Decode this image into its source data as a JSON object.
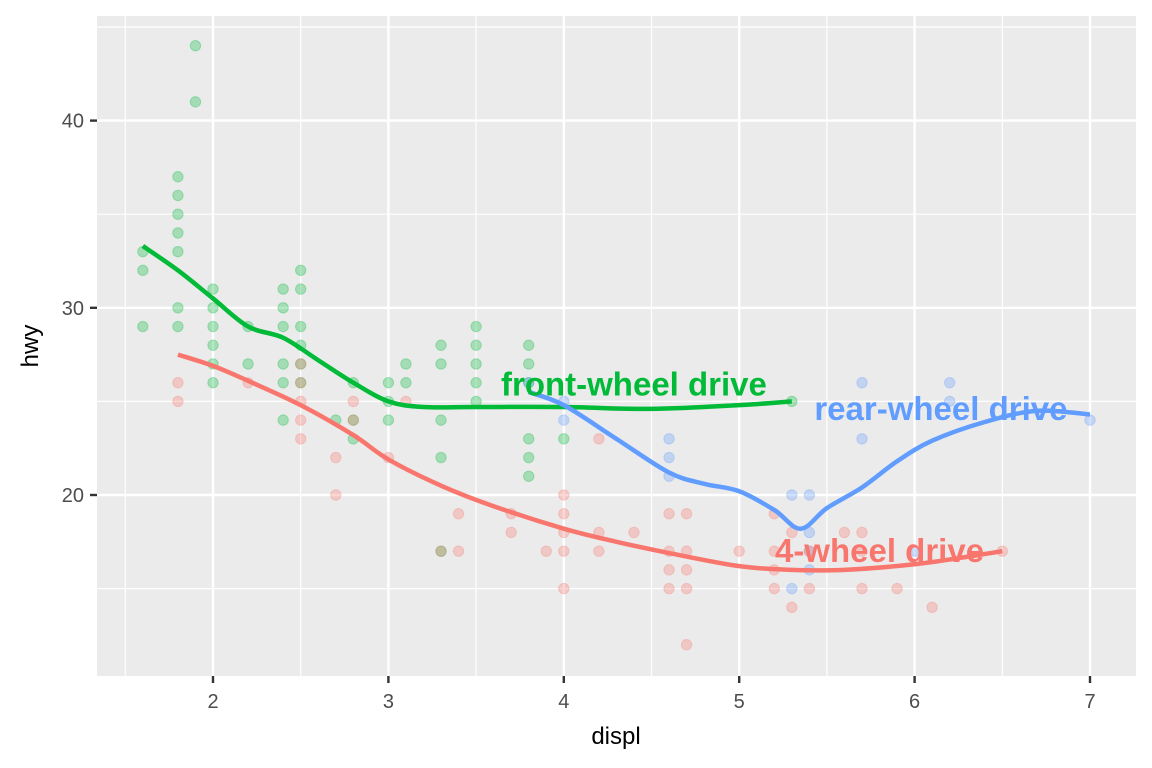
{
  "chart_data": {
    "type": "scatter",
    "title": "",
    "xlabel": "displ",
    "ylabel": "hwy",
    "xlim": [
      1.33,
      7.27
    ],
    "ylim": [
      10.4,
      45.6
    ],
    "x_ticks": [
      2,
      3,
      4,
      5,
      6,
      7
    ],
    "y_ticks": [
      20,
      30,
      40
    ],
    "grid": true,
    "legend": "none",
    "colors": {
      "4": "#F8766D",
      "f": "#00BA38",
      "r": "#619CFF"
    },
    "series": [
      {
        "name": "front-wheel drive",
        "key": "f",
        "label_pos": [
          4.4,
          25.9
        ],
        "points": [
          [
            1.6,
            33
          ],
          [
            1.6,
            32
          ],
          [
            1.6,
            29
          ],
          [
            1.8,
            37
          ],
          [
            1.8,
            36
          ],
          [
            1.8,
            35
          ],
          [
            1.8,
            34
          ],
          [
            1.8,
            33
          ],
          [
            1.8,
            30
          ],
          [
            1.8,
            29
          ],
          [
            1.9,
            44
          ],
          [
            1.9,
            41
          ],
          [
            2.0,
            31
          ],
          [
            2.0,
            30
          ],
          [
            2.0,
            29
          ],
          [
            2.0,
            28
          ],
          [
            2.0,
            27
          ],
          [
            2.0,
            26
          ],
          [
            2.2,
            29
          ],
          [
            2.2,
            27
          ],
          [
            2.4,
            31
          ],
          [
            2.4,
            30
          ],
          [
            2.4,
            29
          ],
          [
            2.4,
            27
          ],
          [
            2.4,
            26
          ],
          [
            2.4,
            24
          ],
          [
            2.5,
            32
          ],
          [
            2.5,
            31
          ],
          [
            2.5,
            29
          ],
          [
            2.5,
            28
          ],
          [
            2.5,
            27
          ],
          [
            2.5,
            26
          ],
          [
            2.7,
            24
          ],
          [
            2.8,
            26
          ],
          [
            2.8,
            24
          ],
          [
            2.8,
            23
          ],
          [
            3.0,
            26
          ],
          [
            3.0,
            25
          ],
          [
            3.0,
            24
          ],
          [
            3.1,
            27
          ],
          [
            3.1,
            26
          ],
          [
            3.3,
            28
          ],
          [
            3.3,
            27
          ],
          [
            3.3,
            24
          ],
          [
            3.3,
            22
          ],
          [
            3.3,
            17
          ],
          [
            3.5,
            29
          ],
          [
            3.5,
            28
          ],
          [
            3.5,
            27
          ],
          [
            3.5,
            26
          ],
          [
            3.5,
            25
          ],
          [
            3.8,
            28
          ],
          [
            3.8,
            27
          ],
          [
            3.8,
            26
          ],
          [
            3.8,
            23
          ],
          [
            3.8,
            22
          ],
          [
            3.8,
            21
          ],
          [
            4.0,
            23
          ],
          [
            5.3,
            25
          ]
        ],
        "smooth": [
          [
            1.6,
            33.3
          ],
          [
            1.8,
            32.0
          ],
          [
            2.0,
            30.5
          ],
          [
            2.2,
            29.0
          ],
          [
            2.4,
            28.4
          ],
          [
            2.6,
            27.2
          ],
          [
            2.8,
            26.0
          ],
          [
            3.0,
            25.0
          ],
          [
            3.2,
            24.7
          ],
          [
            3.5,
            24.7
          ],
          [
            4.0,
            24.7
          ],
          [
            4.5,
            24.6
          ],
          [
            5.0,
            24.8
          ],
          [
            5.3,
            25.0
          ]
        ]
      },
      {
        "name": "rear-wheel drive",
        "key": "r",
        "label_pos": [
          6.15,
          24.6
        ],
        "points": [
          [
            3.8,
            26
          ],
          [
            4.0,
            24
          ],
          [
            4.0,
            25
          ],
          [
            4.6,
            23
          ],
          [
            4.6,
            22
          ],
          [
            4.6,
            21
          ],
          [
            5.3,
            20
          ],
          [
            5.4,
            20
          ],
          [
            5.3,
            15
          ],
          [
            5.4,
            18
          ],
          [
            5.4,
            17
          ],
          [
            5.4,
            16
          ],
          [
            5.7,
            26
          ],
          [
            5.7,
            23
          ],
          [
            6.0,
            17
          ],
          [
            6.2,
            26
          ],
          [
            6.2,
            25
          ],
          [
            7.0,
            24
          ]
        ],
        "smooth": [
          [
            3.8,
            25.5
          ],
          [
            4.0,
            24.8
          ],
          [
            4.3,
            23.0
          ],
          [
            4.6,
            21.2
          ],
          [
            4.8,
            20.6
          ],
          [
            5.0,
            20.2
          ],
          [
            5.2,
            19.2
          ],
          [
            5.35,
            18.2
          ],
          [
            5.5,
            19.3
          ],
          [
            5.7,
            20.4
          ],
          [
            5.9,
            21.8
          ],
          [
            6.1,
            22.9
          ],
          [
            6.4,
            23.9
          ],
          [
            6.7,
            24.5
          ],
          [
            7.0,
            24.3
          ]
        ]
      },
      {
        "name": "4-wheel drive",
        "key": "4",
        "label_pos": [
          5.8,
          17.0
        ],
        "points": [
          [
            1.8,
            26
          ],
          [
            1.8,
            25
          ],
          [
            2.2,
            26
          ],
          [
            2.5,
            27
          ],
          [
            2.5,
            26
          ],
          [
            2.5,
            25
          ],
          [
            2.5,
            24
          ],
          [
            2.5,
            23
          ],
          [
            2.7,
            22
          ],
          [
            2.7,
            20
          ],
          [
            2.8,
            25
          ],
          [
            2.8,
            24
          ],
          [
            3.0,
            22
          ],
          [
            3.1,
            25
          ],
          [
            3.3,
            17
          ],
          [
            3.4,
            19
          ],
          [
            3.4,
            17
          ],
          [
            3.7,
            19
          ],
          [
            3.7,
            18
          ],
          [
            3.9,
            17
          ],
          [
            4.0,
            20
          ],
          [
            4.0,
            19
          ],
          [
            4.0,
            18
          ],
          [
            4.0,
            17
          ],
          [
            4.0,
            15
          ],
          [
            4.2,
            23
          ],
          [
            4.2,
            18
          ],
          [
            4.2,
            17
          ],
          [
            4.4,
            18
          ],
          [
            4.6,
            19
          ],
          [
            4.6,
            17
          ],
          [
            4.6,
            16
          ],
          [
            4.6,
            15
          ],
          [
            4.7,
            19
          ],
          [
            4.7,
            17
          ],
          [
            4.7,
            16
          ],
          [
            4.7,
            15
          ],
          [
            4.7,
            12
          ],
          [
            5.0,
            17
          ],
          [
            5.2,
            19
          ],
          [
            5.2,
            17
          ],
          [
            5.2,
            16
          ],
          [
            5.2,
            15
          ],
          [
            5.3,
            18
          ],
          [
            5.3,
            14
          ],
          [
            5.4,
            17
          ],
          [
            5.4,
            15
          ],
          [
            5.6,
            18
          ],
          [
            5.7,
            18
          ],
          [
            5.7,
            17
          ],
          [
            5.7,
            15
          ],
          [
            5.9,
            15
          ],
          [
            6.1,
            14
          ],
          [
            6.5,
            17
          ]
        ],
        "smooth": [
          [
            1.8,
            27.5
          ],
          [
            2.0,
            26.9
          ],
          [
            2.2,
            26.1
          ],
          [
            2.5,
            24.8
          ],
          [
            2.8,
            23.2
          ],
          [
            3.0,
            21.9
          ],
          [
            3.3,
            20.5
          ],
          [
            3.6,
            19.4
          ],
          [
            4.0,
            18.2
          ],
          [
            4.3,
            17.5
          ],
          [
            4.6,
            16.9
          ],
          [
            5.0,
            16.2
          ],
          [
            5.3,
            16.0
          ],
          [
            5.6,
            16.0
          ],
          [
            6.0,
            16.3
          ],
          [
            6.3,
            16.7
          ],
          [
            6.5,
            17.0
          ]
        ]
      }
    ]
  },
  "axes": {
    "x_title": "displ",
    "y_title": "hwy",
    "x_tick_labels": [
      "2",
      "3",
      "4",
      "5",
      "6",
      "7"
    ],
    "y_tick_labels": [
      "20",
      "30",
      "40"
    ]
  },
  "labels": {
    "front": "front-wheel drive",
    "rear": "rear-wheel drive",
    "four": "4-wheel drive"
  }
}
